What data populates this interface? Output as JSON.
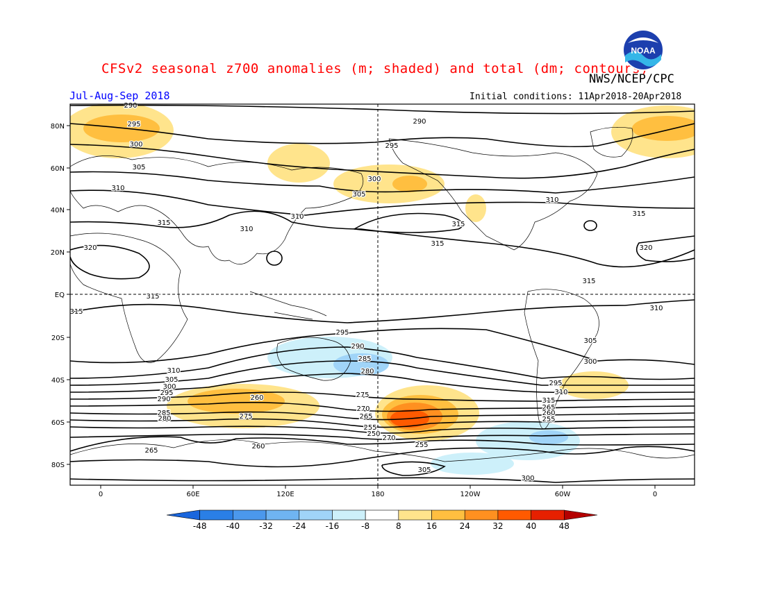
{
  "title": "CFSv2 seasonal z700 anomalies (m; shaded) and total (dm; contours)",
  "agency": "NWS/NCEP/CPC",
  "period": "Jul-Aug-Sep 2018",
  "initial_conditions": "Initial conditions: 11Apr2018-20Apr2018",
  "logo_text": "NOAA",
  "map": {
    "lat_labels": [
      "80N",
      "60N",
      "40N",
      "20N",
      "EQ",
      "20S",
      "40S",
      "60S",
      "80S"
    ],
    "lon_labels": [
      "0",
      "60E",
      "120E",
      "180",
      "120W",
      "60W",
      "0"
    ],
    "contour_labels": [
      "290",
      "295",
      "300",
      "305",
      "310",
      "315",
      "320",
      "310",
      "310",
      "315",
      "315",
      "290",
      "295",
      "300",
      "305",
      "310",
      "315",
      "320",
      "315",
      "315",
      "315",
      "310",
      "305",
      "300",
      "295",
      "290",
      "285",
      "280",
      "275",
      "270",
      "265",
      "260",
      "255",
      "250",
      "310",
      "305",
      "300",
      "295",
      "290",
      "285",
      "280",
      "275",
      "270",
      "265",
      "260",
      "255",
      "305",
      "300",
      "295",
      "310",
      "315",
      "265",
      "260",
      "255"
    ]
  },
  "colorbar": {
    "labels": [
      "-48",
      "-40",
      "-32",
      "-24",
      "-16",
      "-8",
      "8",
      "16",
      "24",
      "32",
      "40",
      "48"
    ],
    "colors": [
      "#1a66dd",
      "#2a7fe6",
      "#4b98ec",
      "#6fb4f2",
      "#a0d4f8",
      "#cdf0fa",
      "#ffffff",
      "#ffe48c",
      "#ffbf40",
      "#ff9020",
      "#ff5a00",
      "#e62000",
      "#b40000"
    ]
  }
}
